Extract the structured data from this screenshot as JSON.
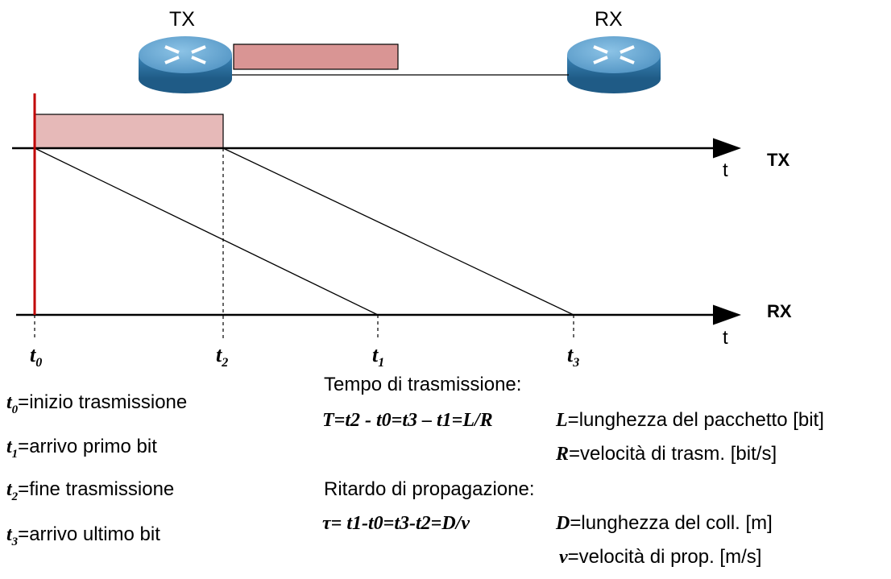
{
  "nodes": {
    "tx_label": "TX",
    "rx_label": "RX"
  },
  "axes": {
    "tx_axis_label": "TX",
    "rx_axis_label": "RX",
    "tx_time_symbol": "t",
    "rx_time_symbol": "t"
  },
  "time_marks": [
    {
      "base": "t",
      "sub": "0"
    },
    {
      "base": "t",
      "sub": "2"
    },
    {
      "base": "t",
      "sub": "1"
    },
    {
      "base": "t",
      "sub": "3"
    }
  ],
  "definitions": [
    {
      "base": "t",
      "sub": "0",
      "text": "=inizio trasmissione"
    },
    {
      "base": "t",
      "sub": "1",
      "text": "=arrivo primo bit"
    },
    {
      "base": "t",
      "sub": "2",
      "text": "=fine trasmissione"
    },
    {
      "base": "t",
      "sub": "3",
      "text": "=arrivo ultimo bit"
    }
  ],
  "transmission": {
    "heading": "Tempo di trasmissione:",
    "formula": "T=t2 - t0=t3 – t1=L/R",
    "vars": [
      {
        "sym": "L",
        "text": "=lunghezza del pacchetto [bit]"
      },
      {
        "sym": "R",
        "text": "=velocità di trasm. [bit/s]"
      }
    ]
  },
  "propagation": {
    "heading": "Ritardo di propagazione:",
    "formula": "τ= t1-t0=t3-t2=D/ν",
    "vars": [
      {
        "sym": "D",
        "text": "=lunghezza del coll. [m]"
      },
      {
        "sym": "ν",
        "text": "=velocità di prop. [m/s]"
      }
    ]
  },
  "colors": {
    "packet_fill_link": "#d99594",
    "packet_fill_timeline": "#e6b9b8",
    "start_marker": "#c00000",
    "router_top": "#5b9bc8",
    "router_side": "#2e6f9e"
  }
}
